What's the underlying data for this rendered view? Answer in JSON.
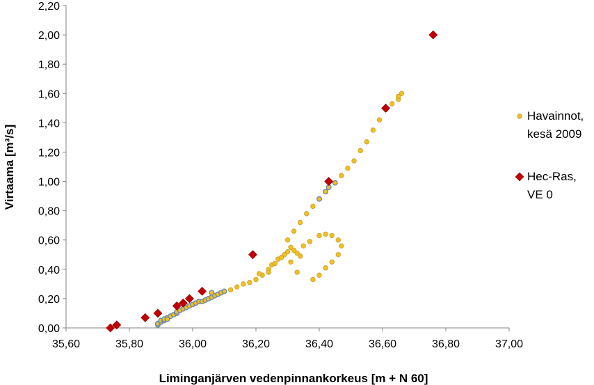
{
  "chart_data": {
    "type": "scatter",
    "xlabel": "Liminganjärven vedenpinnankorkeus [m + N 60]",
    "ylabel": "Virtaama [m³/s]",
    "xlim": [
      35.6,
      37.0
    ],
    "ylim": [
      0.0,
      2.2
    ],
    "x_ticks": [
      "35,60",
      "35,80",
      "36,00",
      "36,20",
      "36,40",
      "36,60",
      "36,80",
      "37,00"
    ],
    "y_ticks": [
      "0,00",
      "0,20",
      "0,40",
      "0,60",
      "0,80",
      "1,00",
      "1,20",
      "1,40",
      "1,60",
      "1,80",
      "2,00",
      "2,20"
    ],
    "grid": false,
    "legend_position": "right",
    "colors": {
      "observed_fill": "#f0c020",
      "observed_edge": "#c8a030",
      "observed_dense_edge": "#6a8ab5",
      "model_fill": "#c00000"
    },
    "series": [
      {
        "name_lines": [
          "Havainnot,",
          "kesä 2009"
        ],
        "marker": "circle",
        "points": [
          [
            35.89,
            0.02
          ],
          [
            35.89,
            0.03
          ],
          [
            35.9,
            0.04
          ],
          [
            35.9,
            0.05
          ],
          [
            35.91,
            0.05
          ],
          [
            35.91,
            0.06
          ],
          [
            35.92,
            0.07
          ],
          [
            35.92,
            0.06
          ],
          [
            35.93,
            0.08
          ],
          [
            35.94,
            0.09
          ],
          [
            35.95,
            0.1
          ],
          [
            35.95,
            0.11
          ],
          [
            35.96,
            0.12
          ],
          [
            35.97,
            0.13
          ],
          [
            35.98,
            0.14
          ],
          [
            35.99,
            0.15
          ],
          [
            36.0,
            0.16
          ],
          [
            36.01,
            0.17
          ],
          [
            36.02,
            0.18
          ],
          [
            36.03,
            0.18
          ],
          [
            36.04,
            0.19
          ],
          [
            36.05,
            0.2
          ],
          [
            36.06,
            0.21
          ],
          [
            36.07,
            0.22
          ],
          [
            36.06,
            0.24
          ],
          [
            36.08,
            0.23
          ],
          [
            36.09,
            0.24
          ],
          [
            36.1,
            0.25
          ],
          [
            36.12,
            0.26
          ],
          [
            36.14,
            0.28
          ],
          [
            36.16,
            0.3
          ],
          [
            36.18,
            0.31
          ],
          [
            36.2,
            0.33
          ],
          [
            36.22,
            0.36
          ],
          [
            36.24,
            0.4
          ],
          [
            36.25,
            0.43
          ],
          [
            36.27,
            0.47
          ],
          [
            36.29,
            0.5
          ],
          [
            36.3,
            0.52
          ],
          [
            36.31,
            0.55
          ],
          [
            36.3,
            0.6
          ],
          [
            36.32,
            0.66
          ],
          [
            36.34,
            0.72
          ],
          [
            36.36,
            0.78
          ],
          [
            36.38,
            0.83
          ],
          [
            36.4,
            0.88
          ],
          [
            36.42,
            0.93
          ],
          [
            36.43,
            0.96
          ],
          [
            36.45,
            0.99
          ],
          [
            36.47,
            1.04
          ],
          [
            36.49,
            1.09
          ],
          [
            36.51,
            1.14
          ],
          [
            36.53,
            1.21
          ],
          [
            36.55,
            1.27
          ],
          [
            36.57,
            1.35
          ],
          [
            36.59,
            1.42
          ],
          [
            36.61,
            1.49
          ],
          [
            36.63,
            1.53
          ],
          [
            36.65,
            1.56
          ],
          [
            36.65,
            1.58
          ],
          [
            36.66,
            1.6
          ],
          [
            36.33,
            0.51
          ],
          [
            36.35,
            0.56
          ],
          [
            36.37,
            0.59
          ],
          [
            36.4,
            0.63
          ],
          [
            36.42,
            0.64
          ],
          [
            36.44,
            0.63
          ],
          [
            36.46,
            0.6
          ],
          [
            36.47,
            0.56
          ],
          [
            36.46,
            0.5
          ],
          [
            36.44,
            0.45
          ],
          [
            36.42,
            0.41
          ],
          [
            36.4,
            0.36
          ],
          [
            36.38,
            0.33
          ],
          [
            36.33,
            0.38
          ],
          [
            36.31,
            0.45
          ],
          [
            36.34,
            0.49
          ],
          [
            36.32,
            0.53
          ],
          [
            36.24,
            0.38
          ],
          [
            36.26,
            0.44
          ],
          [
            36.28,
            0.48
          ],
          [
            36.21,
            0.37
          ]
        ]
      },
      {
        "name_lines": [
          "Hec-Ras,",
          "VE 0"
        ],
        "marker": "diamond",
        "points": [
          [
            35.74,
            0.0
          ],
          [
            35.76,
            0.02
          ],
          [
            35.85,
            0.07
          ],
          [
            35.89,
            0.1
          ],
          [
            35.95,
            0.15
          ],
          [
            35.97,
            0.17
          ],
          [
            35.99,
            0.2
          ],
          [
            36.03,
            0.25
          ],
          [
            36.19,
            0.5
          ],
          [
            36.43,
            1.0
          ],
          [
            36.61,
            1.5
          ],
          [
            36.76,
            2.0
          ]
        ]
      }
    ]
  }
}
